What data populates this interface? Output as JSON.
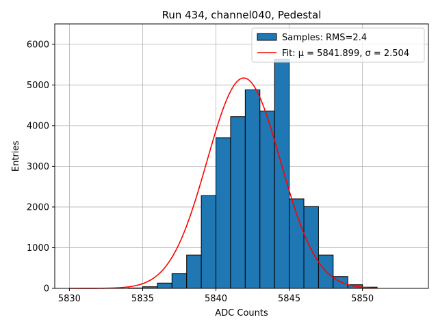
{
  "chart_data": {
    "type": "bar",
    "title": "Run 434, channel040, Pedestal",
    "xlabel": "ADC Counts",
    "ylabel": "Entries",
    "xlim": [
      5829.0,
      5854.5
    ],
    "ylim": [
      0,
      6500
    ],
    "grid": true,
    "legend_position": "top-right",
    "x_ticks": [
      5830,
      5835,
      5840,
      5845,
      5850
    ],
    "y_ticks": [
      0,
      1000,
      2000,
      3000,
      4000,
      5000,
      6000
    ],
    "histogram": {
      "name": "Samples: RMS=2.4",
      "color": "#1f77b4",
      "edgecolor": "#000000",
      "bin_width": 1,
      "bins": [
        {
          "x0": 5834,
          "count": 10
        },
        {
          "x0": 5835,
          "count": 40
        },
        {
          "x0": 5836,
          "count": 130
        },
        {
          "x0": 5837,
          "count": 360
        },
        {
          "x0": 5838,
          "count": 820
        },
        {
          "x0": 5839,
          "count": 2280
        },
        {
          "x0": 5840,
          "count": 3700
        },
        {
          "x0": 5841,
          "count": 4220
        },
        {
          "x0": 5842,
          "count": 4880
        },
        {
          "x0": 5843,
          "count": 4360
        },
        {
          "x0": 5844,
          "count": 5630
        },
        {
          "x0": 5845,
          "count": 2200
        },
        {
          "x0": 5846,
          "count": 2010
        },
        {
          "x0": 5847,
          "count": 820
        },
        {
          "x0": 5848,
          "count": 290
        },
        {
          "x0": 5849,
          "count": 90
        },
        {
          "x0": 5850,
          "count": 30
        }
      ]
    },
    "fit": {
      "name": "Fit: μ = 5841.899, σ = 2.504",
      "color": "#ff0000",
      "mu": 5841.899,
      "sigma": 2.504,
      "amplitude": 5170,
      "x_range": [
        5830,
        5851
      ]
    }
  }
}
